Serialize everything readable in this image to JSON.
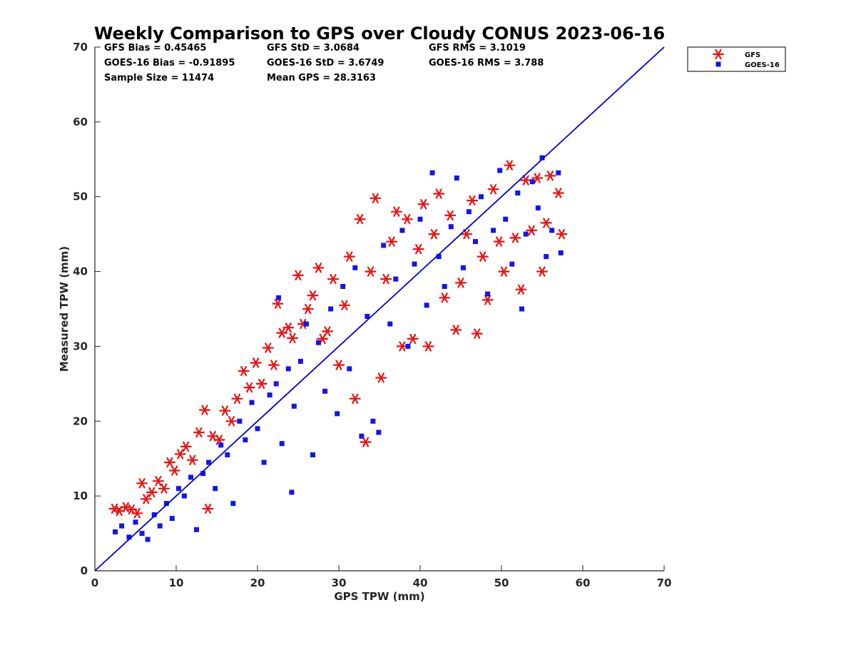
{
  "chart_data": {
    "type": "scatter",
    "title": "Weekly Comparison to GPS over Cloudy CONUS 2023-06-16",
    "xlabel": "GPS TPW (mm)",
    "ylabel": "Measured TPW (mm)",
    "xlim": [
      0,
      70
    ],
    "ylim": [
      0,
      70
    ],
    "xticks": [
      "0",
      "10",
      "20",
      "30",
      "40",
      "50",
      "60",
      "70"
    ],
    "yticks": [
      "0",
      "10",
      "20",
      "30",
      "40",
      "50",
      "60",
      "70"
    ],
    "grid": false,
    "legend_position": "outside-top-right",
    "stats": [
      [
        "GFS Bias = 0.45465",
        "GFS StD = 3.0684",
        "GFS RMS = 3.1019"
      ],
      [
        "GOES-16 Bias = -0.91895",
        "GOES-16 StD = 3.6749",
        "GOES-16 RMS = 3.788"
      ],
      [
        "Sample Size = 11474",
        "Mean GPS = 28.3163",
        ""
      ]
    ],
    "reference_line": {
      "x": [
        0,
        70
      ],
      "y": [
        0,
        70
      ],
      "color": "#0000dd"
    },
    "series": [
      {
        "name": "GFS",
        "marker": "asterisk",
        "color": "#ee1111",
        "points": [
          [
            2.4,
            8.3
          ],
          [
            3.0,
            8.0
          ],
          [
            3.8,
            8.5
          ],
          [
            4.5,
            8.2
          ],
          [
            5.2,
            7.7
          ],
          [
            5.8,
            11.7
          ],
          [
            6.3,
            9.6
          ],
          [
            7.0,
            10.5
          ],
          [
            7.8,
            12.0
          ],
          [
            8.5,
            11.0
          ],
          [
            9.2,
            14.5
          ],
          [
            9.8,
            13.4
          ],
          [
            10.5,
            15.6
          ],
          [
            11.2,
            16.6
          ],
          [
            12.0,
            14.8
          ],
          [
            12.8,
            18.5
          ],
          [
            13.5,
            21.5
          ],
          [
            13.9,
            8.3
          ],
          [
            14.5,
            18.0
          ],
          [
            15.3,
            17.5
          ],
          [
            16.0,
            21.4
          ],
          [
            16.8,
            20.0
          ],
          [
            17.5,
            23.0
          ],
          [
            18.3,
            26.7
          ],
          [
            19.0,
            24.5
          ],
          [
            19.8,
            27.8
          ],
          [
            20.5,
            25.0
          ],
          [
            21.3,
            29.8
          ],
          [
            22.0,
            27.5
          ],
          [
            22.5,
            35.7
          ],
          [
            23.0,
            31.8
          ],
          [
            23.8,
            32.5
          ],
          [
            24.3,
            31.1
          ],
          [
            25.0,
            39.5
          ],
          [
            25.6,
            33.0
          ],
          [
            26.2,
            35.0
          ],
          [
            26.8,
            36.8
          ],
          [
            27.5,
            40.5
          ],
          [
            28.0,
            31.0
          ],
          [
            28.6,
            32.0
          ],
          [
            29.3,
            39.0
          ],
          [
            30.0,
            27.5
          ],
          [
            30.7,
            35.5
          ],
          [
            31.3,
            42.0
          ],
          [
            32.0,
            23.0
          ],
          [
            32.6,
            47.0
          ],
          [
            33.3,
            17.2
          ],
          [
            33.9,
            40.0
          ],
          [
            34.5,
            49.8
          ],
          [
            35.2,
            25.8
          ],
          [
            35.8,
            39.0
          ],
          [
            36.5,
            44.0
          ],
          [
            37.1,
            48.0
          ],
          [
            37.8,
            30.0
          ],
          [
            38.4,
            47.0
          ],
          [
            39.1,
            31.0
          ],
          [
            39.8,
            43.0
          ],
          [
            40.4,
            49.0
          ],
          [
            41.0,
            30.0
          ],
          [
            41.7,
            45.0
          ],
          [
            42.3,
            50.4
          ],
          [
            43.0,
            36.5
          ],
          [
            43.7,
            47.5
          ],
          [
            44.4,
            32.2
          ],
          [
            45.0,
            38.5
          ],
          [
            45.7,
            45.0
          ],
          [
            46.4,
            49.5
          ],
          [
            47.0,
            31.7
          ],
          [
            47.7,
            42.0
          ],
          [
            48.3,
            36.2
          ],
          [
            49.0,
            51.0
          ],
          [
            49.7,
            44.0
          ],
          [
            50.3,
            40.0
          ],
          [
            51.0,
            54.2
          ],
          [
            51.7,
            44.5
          ],
          [
            52.4,
            37.6
          ],
          [
            53.0,
            52.2
          ],
          [
            53.7,
            45.5
          ],
          [
            54.4,
            52.5
          ],
          [
            55.0,
            40.0
          ],
          [
            55.5,
            46.5
          ],
          [
            56.0,
            52.8
          ],
          [
            57.0,
            50.5
          ],
          [
            57.4,
            45.0
          ]
        ]
      },
      {
        "name": "GOES-16",
        "marker": "square",
        "color": "#1414ee",
        "points": [
          [
            2.5,
            5.2
          ],
          [
            3.3,
            6.0
          ],
          [
            4.2,
            4.5
          ],
          [
            5.0,
            6.5
          ],
          [
            5.8,
            5.0
          ],
          [
            6.5,
            4.2
          ],
          [
            7.3,
            7.5
          ],
          [
            8.0,
            6.0
          ],
          [
            8.8,
            9.0
          ],
          [
            9.5,
            7.0
          ],
          [
            10.3,
            11.0
          ],
          [
            11.0,
            10.0
          ],
          [
            11.8,
            12.5
          ],
          [
            12.5,
            5.5
          ],
          [
            13.3,
            13.0
          ],
          [
            14.0,
            14.5
          ],
          [
            14.8,
            11.0
          ],
          [
            15.5,
            16.8
          ],
          [
            16.3,
            15.5
          ],
          [
            17.0,
            9.0
          ],
          [
            17.8,
            20.0
          ],
          [
            18.5,
            17.5
          ],
          [
            19.3,
            22.5
          ],
          [
            20.0,
            19.0
          ],
          [
            20.8,
            14.5
          ],
          [
            21.5,
            23.5
          ],
          [
            22.3,
            25.0
          ],
          [
            22.6,
            36.5
          ],
          [
            23.0,
            17.0
          ],
          [
            23.8,
            27.0
          ],
          [
            24.2,
            10.5
          ],
          [
            24.5,
            22.0
          ],
          [
            25.3,
            28.0
          ],
          [
            26.0,
            33.0
          ],
          [
            26.8,
            15.5
          ],
          [
            27.5,
            30.5
          ],
          [
            28.3,
            24.0
          ],
          [
            29.0,
            35.0
          ],
          [
            29.8,
            21.0
          ],
          [
            30.5,
            38.0
          ],
          [
            31.3,
            27.0
          ],
          [
            32.0,
            40.5
          ],
          [
            32.8,
            18.0
          ],
          [
            33.5,
            34.0
          ],
          [
            34.2,
            20.0
          ],
          [
            34.9,
            18.5
          ],
          [
            35.5,
            43.5
          ],
          [
            36.3,
            33.0
          ],
          [
            37.0,
            39.0
          ],
          [
            37.8,
            45.5
          ],
          [
            38.5,
            30.0
          ],
          [
            39.3,
            41.0
          ],
          [
            40.0,
            47.0
          ],
          [
            40.8,
            35.5
          ],
          [
            41.5,
            53.2
          ],
          [
            42.3,
            42.0
          ],
          [
            43.0,
            38.0
          ],
          [
            43.8,
            46.0
          ],
          [
            44.5,
            52.5
          ],
          [
            45.3,
            40.5
          ],
          [
            46.0,
            48.0
          ],
          [
            46.8,
            44.0
          ],
          [
            47.5,
            50.0
          ],
          [
            48.3,
            37.0
          ],
          [
            49.0,
            45.5
          ],
          [
            49.8,
            53.5
          ],
          [
            50.5,
            47.0
          ],
          [
            51.3,
            41.0
          ],
          [
            52.0,
            50.5
          ],
          [
            52.5,
            35.0
          ],
          [
            53.0,
            45.0
          ],
          [
            53.8,
            52.0
          ],
          [
            54.5,
            48.5
          ],
          [
            55.0,
            55.2
          ],
          [
            55.5,
            42.0
          ],
          [
            56.2,
            45.5
          ],
          [
            57.0,
            53.2
          ],
          [
            57.3,
            42.5
          ]
        ]
      }
    ]
  }
}
